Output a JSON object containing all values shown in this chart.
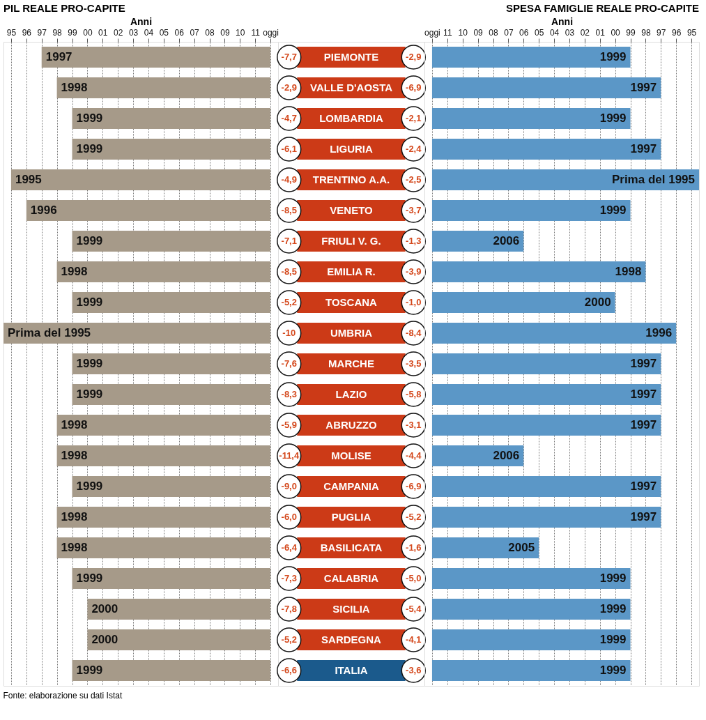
{
  "chart_data": [
    {
      "type": "bar",
      "orientation": "horizontal",
      "title": "PIL REALE PRO-CAPITE",
      "xlabel": "Anni",
      "categories": [
        null,
        null,
        null,
        null,
        null,
        null,
        null,
        null,
        null,
        null,
        null,
        null,
        null,
        null,
        null,
        null,
        null,
        null,
        null,
        null,
        null
      ],
      "base": [
        1997,
        1998,
        1999,
        1999,
        1995,
        1996,
        1999,
        1998,
        1999,
        1994.5,
        1999,
        1999,
        1998,
        1998,
        1999,
        1998,
        1998,
        1999,
        2000,
        2000,
        1999
      ],
      "values": [
        15,
        14,
        13,
        13,
        17,
        16,
        13,
        14,
        13,
        17.5,
        13,
        13,
        14,
        14,
        13,
        14,
        14,
        13,
        12,
        12,
        13
      ],
      "color": "#a69a89",
      "xlim": [
        1994.5,
        2012.5
      ],
      "xticks": [
        {
          "value": 1995,
          "label": "95"
        },
        {
          "value": 1996,
          "label": "96"
        },
        {
          "value": 1997,
          "label": "97"
        },
        {
          "value": 1998,
          "label": "98"
        },
        {
          "value": 1999,
          "label": "99"
        },
        {
          "value": 2000,
          "label": "00"
        },
        {
          "value": 2001,
          "label": "01"
        },
        {
          "value": 2002,
          "label": "02"
        },
        {
          "value": 2003,
          "label": "03"
        },
        {
          "value": 2004,
          "label": "04"
        },
        {
          "value": 2005,
          "label": "05"
        },
        {
          "value": 2006,
          "label": "06"
        },
        {
          "value": 2007,
          "label": "07"
        },
        {
          "value": 2008,
          "label": "08"
        },
        {
          "value": 2009,
          "label": "09"
        },
        {
          "value": 2010,
          "label": "10"
        },
        {
          "value": 2011,
          "label": "11"
        },
        {
          "value": 2012,
          "label": "oggi"
        }
      ],
      "grid": "x",
      "tick_labels": "x",
      "annotations": [
        {
          "text": "1997",
          "x": 1997
        },
        {
          "text": "1998",
          "x": 1998
        },
        {
          "text": "1999",
          "x": 1999
        },
        {
          "text": "1999",
          "x": 1999
        },
        {
          "text": "1995",
          "x": 1995
        },
        {
          "text": "1996",
          "x": 1996
        },
        {
          "text": "1999",
          "x": 1999
        },
        {
          "text": "1998",
          "x": 1998
        },
        {
          "text": "1999",
          "x": 1999
        },
        {
          "text": "Prima del 1995",
          "x": 1994.5
        },
        {
          "text": "1999",
          "x": 1999
        },
        {
          "text": "1999",
          "x": 1999
        },
        {
          "text": "1998",
          "x": 1998
        },
        {
          "text": "1998",
          "x": 1998
        },
        {
          "text": "1999",
          "x": 1999
        },
        {
          "text": "1998",
          "x": 1998
        },
        {
          "text": "1998",
          "x": 1998
        },
        {
          "text": "1999",
          "x": 1999
        },
        {
          "text": "2000",
          "x": 2000
        },
        {
          "text": "2000",
          "x": 2000
        },
        {
          "text": "1999",
          "x": 1999
        },
        "Fonte: elaborazione su dati Istat"
      ]
    },
    {
      "type": "other",
      "categories": [
        "PIEMONTE",
        "VALLE D'AOSTA",
        "LOMBARDIA",
        "LIGURIA",
        "TRENTINO A.A.",
        "VENETO",
        "FRIULI V. G.",
        "EMILIA R.",
        "TOSCANA",
        "UMBRIA",
        "MARCHE",
        "LAZIO",
        "ABRUZZO",
        "MOLISE",
        "CAMPANIA",
        "PUGLIA",
        "BASILICATA",
        "CALABRIA",
        "SICILIA",
        "SARDEGNA",
        "ITALIA"
      ],
      "colors": [
        "#cc3a17",
        "#cc3a17",
        "#cc3a17",
        "#cc3a17",
        "#cc3a17",
        "#cc3a17",
        "#cc3a17",
        "#cc3a17",
        "#cc3a17",
        "#cc3a17",
        "#cc3a17",
        "#cc3a17",
        "#cc3a17",
        "#cc3a17",
        "#cc3a17",
        "#cc3a17",
        "#cc3a17",
        "#cc3a17",
        "#cc3a17",
        "#cc3a17",
        "#1b5a8c"
      ],
      "series": [
        {
          "color": "#ffffff",
          "values": [
            -7.7,
            -2.9,
            -4.7,
            -6.1,
            -4.9,
            -8.5,
            -7.1,
            -8.5,
            -5.2,
            -10,
            -7.6,
            -8.3,
            -5.9,
            -11.4,
            -9.0,
            -6.0,
            -6.4,
            -7.3,
            -7.8,
            -5.2,
            -6.6
          ],
          "value_labels": [
            "-7,7",
            "-2,9",
            "-4,7",
            "-6,1",
            "-4,9",
            "-8,5",
            "-7,1",
            "-8,5",
            "-5,2",
            "-10",
            "-7,6",
            "-8,3",
            "-5,9",
            "-11,4",
            "-9,0",
            "-6,0",
            "-6,4",
            "-7,3",
            "-7,8",
            "-5,2",
            "-6,6"
          ]
        },
        {
          "color": "#ffffff",
          "values": [
            -2.9,
            -6.9,
            -2.1,
            -2.4,
            -2.5,
            -3.7,
            -1.3,
            -3.9,
            -1.0,
            -8.4,
            -3.5,
            -5.8,
            -3.1,
            -4.4,
            -6.9,
            -5.2,
            -1.6,
            -5.0,
            -5.4,
            -4.1,
            -3.6
          ],
          "value_labels": [
            "-2,9",
            "-6,9",
            "-2,1",
            "-2,4",
            "-2,5",
            "-3,7",
            "-1,3",
            "-3,9",
            "-1,0",
            "-8,4",
            "-3,5",
            "-5,8",
            "-3,1",
            "-4,4",
            "-6,9",
            "-5,2",
            "-1,6",
            "-5,0",
            "-5,4",
            "-4,1",
            "-3,6"
          ]
        }
      ]
    },
    {
      "type": "bar",
      "orientation": "horizontal",
      "title": "SPESA FAMIGLIE REALE PRO-CAPITE",
      "xlabel": "Anni",
      "categories": [
        null,
        null,
        null,
        null,
        null,
        null,
        null,
        null,
        null,
        null,
        null,
        null,
        null,
        null,
        null,
        null,
        null,
        null,
        null,
        null,
        null
      ],
      "base": [
        1999,
        1997,
        1999,
        1997,
        1994.5,
        1999,
        2006,
        1998,
        2000,
        1996,
        1997,
        1997,
        1997,
        2006,
        1997,
        1997,
        2005,
        1999,
        1999,
        1999,
        1999
      ],
      "values": [
        13,
        15,
        13,
        15,
        17.5,
        13,
        6,
        14,
        12,
        16,
        15,
        15,
        15,
        6,
        15,
        15,
        7,
        13,
        13,
        13,
        13
      ],
      "color": "#5b97c7",
      "xlim": [
        2012.5,
        1994.5
      ],
      "xticks": [
        {
          "value": 1995,
          "label": "95"
        },
        {
          "value": 1996,
          "label": "96"
        },
        {
          "value": 1997,
          "label": "97"
        },
        {
          "value": 1998,
          "label": "98"
        },
        {
          "value": 1999,
          "label": "99"
        },
        {
          "value": 2000,
          "label": "00"
        },
        {
          "value": 2001,
          "label": "01"
        },
        {
          "value": 2002,
          "label": "02"
        },
        {
          "value": 2003,
          "label": "03"
        },
        {
          "value": 2004,
          "label": "04"
        },
        {
          "value": 2005,
          "label": "05"
        },
        {
          "value": 2006,
          "label": "06"
        },
        {
          "value": 2007,
          "label": "07"
        },
        {
          "value": 2008,
          "label": "08"
        },
        {
          "value": 2009,
          "label": "09"
        },
        {
          "value": 2010,
          "label": "10"
        },
        {
          "value": 2011,
          "label": "11"
        },
        {
          "value": 2012,
          "label": "oggi"
        }
      ],
      "grid": "x",
      "tick_labels": "x",
      "annotations": [
        {
          "text": "1999",
          "x": 1999
        },
        {
          "text": "1997",
          "x": 1997
        },
        {
          "text": "1999",
          "x": 1999
        },
        {
          "text": "1997",
          "x": 1997
        },
        {
          "text": "Prima del 1995",
          "x": 1994.5
        },
        {
          "text": "1999",
          "x": 1999
        },
        {
          "text": "2006",
          "x": 2006
        },
        {
          "text": "1998",
          "x": 1998
        },
        {
          "text": "2000",
          "x": 2000
        },
        {
          "text": "1996",
          "x": 1996
        },
        {
          "text": "1997",
          "x": 1997
        },
        {
          "text": "1997",
          "x": 1997
        },
        {
          "text": "1997",
          "x": 1997
        },
        {
          "text": "2006",
          "x": 2006
        },
        {
          "text": "1997",
          "x": 1997
        },
        {
          "text": "1997",
          "x": 1997
        },
        {
          "text": "2005",
          "x": 2005
        },
        {
          "text": "1999",
          "x": 1999
        },
        {
          "text": "1999",
          "x": 1999
        },
        {
          "text": "1999",
          "x": 1999
        },
        {
          "text": "1999",
          "x": 1999
        }
      ]
    }
  ]
}
